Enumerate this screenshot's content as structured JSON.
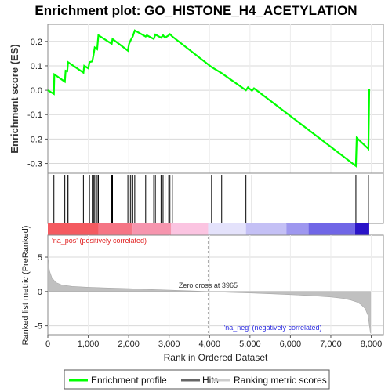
{
  "chart_data": [
    {
      "type": "line",
      "title": "Enrichment plot: GO_HISTONE_H4_ACETYLATION",
      "ylabel": "Enrichment score (ES)",
      "xlim": [
        0,
        8300
      ],
      "ylim": [
        -0.34,
        0.27
      ],
      "yticks": [
        0.2,
        0.1,
        0.0,
        -0.1,
        -0.2,
        -0.3
      ],
      "ytick_labels": [
        "0.2",
        "0.1",
        "0.0",
        "-0.1",
        "-0.2",
        "-0.3"
      ],
      "grid": true,
      "series": [
        {
          "name": "Enrichment profile",
          "color": "#00ff00",
          "points": [
            [
              0,
              0.0
            ],
            [
              150,
              -0.015
            ],
            [
              160,
              0.065
            ],
            [
              420,
              0.035
            ],
            [
              440,
              0.08
            ],
            [
              480,
              0.078
            ],
            [
              500,
              0.115
            ],
            [
              880,
              0.072
            ],
            [
              900,
              0.1
            ],
            [
              1000,
              0.09
            ],
            [
              1030,
              0.115
            ],
            [
              1100,
              0.118
            ],
            [
              1130,
              0.145
            ],
            [
              1160,
              0.175
            ],
            [
              1220,
              0.168
            ],
            [
              1250,
              0.225
            ],
            [
              1580,
              0.19
            ],
            [
              1600,
              0.21
            ],
            [
              1980,
              0.162
            ],
            [
              2010,
              0.19
            ],
            [
              2050,
              0.205
            ],
            [
              2100,
              0.22
            ],
            [
              2150,
              0.245
            ],
            [
              2420,
              0.22
            ],
            [
              2450,
              0.225
            ],
            [
              2620,
              0.21
            ],
            [
              2660,
              0.228
            ],
            [
              2800,
              0.215
            ],
            [
              2850,
              0.225
            ],
            [
              2900,
              0.215
            ],
            [
              2990,
              0.225
            ],
            [
              3020,
              0.23
            ],
            [
              3080,
              0.22
            ],
            [
              4050,
              0.095
            ],
            [
              4100,
              0.09
            ],
            [
              4300,
              0.07
            ],
            [
              4900,
              0.0
            ],
            [
              4950,
              0.012
            ],
            [
              5050,
              -0.002
            ],
            [
              5100,
              0.008
            ],
            [
              7620,
              -0.31
            ],
            [
              7640,
              -0.195
            ],
            [
              7930,
              -0.24
            ],
            [
              7950,
              0.005
            ]
          ]
        }
      ]
    },
    {
      "type": "hits",
      "xlim": [
        0,
        8300
      ],
      "hits": [
        150,
        420,
        480,
        500,
        880,
        1030,
        1100,
        1130,
        1160,
        1220,
        1250,
        1580,
        1600,
        1980,
        2010,
        2050,
        2100,
        2150,
        2420,
        2620,
        2660,
        2800,
        2850,
        2900,
        2990,
        3020,
        3080,
        4050,
        4300,
        4900,
        5050,
        7620,
        7930
      ]
    },
    {
      "type": "heatmap",
      "segments": [
        {
          "from": 0,
          "to": 1250,
          "color": "#f45a60"
        },
        {
          "from": 1250,
          "to": 2100,
          "color": "#f57585"
        },
        {
          "from": 2100,
          "to": 3050,
          "color": "#f695ae"
        },
        {
          "from": 3050,
          "to": 3965,
          "color": "#fbc4e1"
        },
        {
          "from": 3965,
          "to": 4900,
          "color": "#e4e2fb"
        },
        {
          "from": 4900,
          "to": 5900,
          "color": "#c4c0f5"
        },
        {
          "from": 5900,
          "to": 6450,
          "color": "#9e97ef"
        },
        {
          "from": 6450,
          "to": 7600,
          "color": "#7066e6"
        },
        {
          "from": 7600,
          "to": 7950,
          "color": "#2a14c8"
        }
      ]
    },
    {
      "type": "area",
      "ylabel": "Ranked list metric (PreRanked)",
      "xlabel": "Rank in Ordered Dataset",
      "xlim": [
        0,
        8300
      ],
      "ylim": [
        -6.3,
        8.2
      ],
      "xticks": [
        0,
        1000,
        2000,
        3000,
        4000,
        5000,
        6000,
        7000,
        8000
      ],
      "xtick_labels": [
        "0",
        "1,000",
        "2,000",
        "3,000",
        "4,000",
        "5,000",
        "6,000",
        "7,000",
        "8,000"
      ],
      "yticks": [
        5,
        0,
        -5
      ],
      "ytick_labels": [
        "5",
        "0",
        "-5"
      ],
      "grid": true,
      "zero_cross": 3965,
      "series": [
        {
          "name": "Ranking metric scores",
          "color": "#c0c0c0",
          "points": [
            [
              0,
              5.2
            ],
            [
              40,
              3.0
            ],
            [
              100,
              2.0
            ],
            [
              200,
              1.3
            ],
            [
              350,
              0.95
            ],
            [
              600,
              0.75
            ],
            [
              1000,
              0.62
            ],
            [
              1500,
              0.52
            ],
            [
              2000,
              0.42
            ],
            [
              2500,
              0.3
            ],
            [
              3000,
              0.2
            ],
            [
              3500,
              0.1
            ],
            [
              3965,
              0.0
            ],
            [
              4500,
              -0.12
            ],
            [
              5000,
              -0.22
            ],
            [
              5500,
              -0.33
            ],
            [
              6000,
              -0.45
            ],
            [
              6500,
              -0.6
            ],
            [
              7000,
              -0.8
            ],
            [
              7300,
              -1.0
            ],
            [
              7500,
              -1.25
            ],
            [
              7650,
              -1.55
            ],
            [
              7750,
              -1.9
            ],
            [
              7850,
              -2.5
            ],
            [
              7920,
              -3.5
            ],
            [
              7960,
              -5.2
            ],
            [
              7980,
              -6.1
            ]
          ]
        }
      ],
      "annotations": {
        "pos": "'na_pos' (positively correlated)",
        "neg": "'na_neg' (negatively correlated)",
        "zero": "Zero cross at 3965"
      }
    }
  ],
  "legend": {
    "items": [
      {
        "label": "Enrichment profile",
        "color": "#00ff00"
      },
      {
        "label": "Hits",
        "color": "#000000"
      },
      {
        "label": "Ranking metric scores",
        "color": "#c0c0c0"
      }
    ]
  }
}
